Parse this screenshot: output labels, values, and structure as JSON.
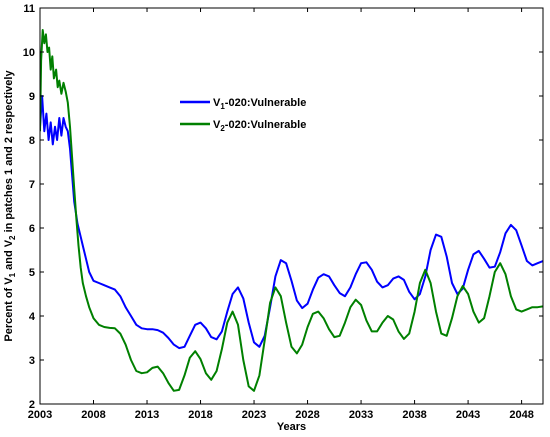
{
  "chart_data": {
    "type": "line",
    "title": "",
    "xlabel": "Years",
    "ylabel_parts": {
      "a": "Percent of V",
      "a_sub": "1",
      "b": " and V",
      "b_sub": "2",
      "c": " in patches 1 and 2 respectively"
    },
    "xlim": [
      2003,
      2050
    ],
    "ylim": [
      2,
      11
    ],
    "x_ticks": [
      2003,
      2008,
      2013,
      2018,
      2023,
      2028,
      2033,
      2038,
      2043,
      2048
    ],
    "x_tick_labels": [
      "2003",
      "2008",
      "2013",
      "2018",
      "2023",
      "2028",
      "2033",
      "2038",
      "2043",
      "2048"
    ],
    "y_ticks": [
      2,
      3,
      4,
      5,
      6,
      7,
      8,
      9,
      10,
      11
    ],
    "y_tick_labels": [
      "2",
      "3",
      "4",
      "5",
      "6",
      "7",
      "8",
      "9",
      "10",
      "11"
    ],
    "legend_position": "upper-center",
    "series": [
      {
        "name_main": "V",
        "name_sub": "1",
        "name_rest": "-020:Vulnerable",
        "color": "#0000ff",
        "points": [
          [
            2003.0,
            8.3
          ],
          [
            2003.2,
            9.0
          ],
          [
            2003.4,
            8.2
          ],
          [
            2003.6,
            8.6
          ],
          [
            2003.8,
            8.0
          ],
          [
            2004.0,
            8.4
          ],
          [
            2004.2,
            7.9
          ],
          [
            2004.4,
            8.3
          ],
          [
            2004.6,
            8.0
          ],
          [
            2004.8,
            8.5
          ],
          [
            2005.0,
            8.1
          ],
          [
            2005.2,
            8.5
          ],
          [
            2005.4,
            8.3
          ],
          [
            2005.6,
            8.2
          ],
          [
            2005.8,
            7.8
          ],
          [
            2006.0,
            7.2
          ],
          [
            2006.2,
            6.6
          ],
          [
            2006.5,
            6.1
          ],
          [
            2006.8,
            5.8
          ],
          [
            2007.0,
            5.6
          ],
          [
            2007.3,
            5.3
          ],
          [
            2007.6,
            5.0
          ],
          [
            2008.0,
            4.8
          ],
          [
            2008.5,
            4.75
          ],
          [
            2009.0,
            4.7
          ],
          [
            2009.5,
            4.65
          ],
          [
            2010.0,
            4.6
          ],
          [
            2010.5,
            4.45
          ],
          [
            2011.0,
            4.2
          ],
          [
            2011.5,
            4.0
          ],
          [
            2012.0,
            3.8
          ],
          [
            2012.5,
            3.72
          ],
          [
            2013.0,
            3.7
          ],
          [
            2013.5,
            3.7
          ],
          [
            2014.0,
            3.68
          ],
          [
            2014.5,
            3.62
          ],
          [
            2015.0,
            3.5
          ],
          [
            2015.5,
            3.35
          ],
          [
            2016.0,
            3.27
          ],
          [
            2016.5,
            3.3
          ],
          [
            2017.0,
            3.55
          ],
          [
            2017.5,
            3.8
          ],
          [
            2018.0,
            3.85
          ],
          [
            2018.5,
            3.72
          ],
          [
            2019.0,
            3.52
          ],
          [
            2019.5,
            3.47
          ],
          [
            2020.0,
            3.65
          ],
          [
            2020.5,
            4.1
          ],
          [
            2021.0,
            4.5
          ],
          [
            2021.5,
            4.65
          ],
          [
            2022.0,
            4.4
          ],
          [
            2022.5,
            3.85
          ],
          [
            2023.0,
            3.4
          ],
          [
            2023.5,
            3.3
          ],
          [
            2024.0,
            3.55
          ],
          [
            2024.5,
            4.2
          ],
          [
            2025.0,
            4.9
          ],
          [
            2025.5,
            5.27
          ],
          [
            2026.0,
            5.2
          ],
          [
            2026.5,
            4.8
          ],
          [
            2027.0,
            4.35
          ],
          [
            2027.5,
            4.18
          ],
          [
            2028.0,
            4.28
          ],
          [
            2028.5,
            4.6
          ],
          [
            2029.0,
            4.87
          ],
          [
            2029.5,
            4.95
          ],
          [
            2030.0,
            4.9
          ],
          [
            2030.5,
            4.7
          ],
          [
            2031.0,
            4.52
          ],
          [
            2031.5,
            4.45
          ],
          [
            2032.0,
            4.65
          ],
          [
            2032.5,
            4.95
          ],
          [
            2033.0,
            5.2
          ],
          [
            2033.5,
            5.22
          ],
          [
            2034.0,
            5.05
          ],
          [
            2034.5,
            4.78
          ],
          [
            2035.0,
            4.65
          ],
          [
            2035.5,
            4.7
          ],
          [
            2036.0,
            4.85
          ],
          [
            2036.5,
            4.9
          ],
          [
            2037.0,
            4.82
          ],
          [
            2037.5,
            4.55
          ],
          [
            2038.0,
            4.38
          ],
          [
            2038.5,
            4.5
          ],
          [
            2039.0,
            4.9
          ],
          [
            2039.5,
            5.5
          ],
          [
            2040.0,
            5.85
          ],
          [
            2040.5,
            5.8
          ],
          [
            2041.0,
            5.35
          ],
          [
            2041.5,
            4.75
          ],
          [
            2042.0,
            4.5
          ],
          [
            2042.5,
            4.62
          ],
          [
            2043.0,
            5.05
          ],
          [
            2043.5,
            5.4
          ],
          [
            2044.0,
            5.48
          ],
          [
            2044.5,
            5.3
          ],
          [
            2045.0,
            5.1
          ],
          [
            2045.5,
            5.12
          ],
          [
            2046.0,
            5.45
          ],
          [
            2046.5,
            5.88
          ],
          [
            2047.0,
            6.07
          ],
          [
            2047.5,
            5.95
          ],
          [
            2048.0,
            5.6
          ],
          [
            2048.5,
            5.25
          ],
          [
            2049.0,
            5.15
          ],
          [
            2049.5,
            5.2
          ],
          [
            2050.0,
            5.25
          ]
        ]
      },
      {
        "name_main": "V",
        "name_sub": "2",
        "name_rest": "-020:Vulnerable",
        "color": "#008000",
        "points": [
          [
            2003.0,
            8.2
          ],
          [
            2003.1,
            9.8
          ],
          [
            2003.25,
            10.5
          ],
          [
            2003.4,
            10.2
          ],
          [
            2003.55,
            10.4
          ],
          [
            2003.7,
            10.0
          ],
          [
            2003.85,
            10.1
          ],
          [
            2004.0,
            9.6
          ],
          [
            2004.15,
            9.9
          ],
          [
            2004.3,
            9.4
          ],
          [
            2004.5,
            9.6
          ],
          [
            2004.65,
            9.2
          ],
          [
            2004.8,
            9.35
          ],
          [
            2005.0,
            9.05
          ],
          [
            2005.2,
            9.3
          ],
          [
            2005.4,
            9.1
          ],
          [
            2005.6,
            8.85
          ],
          [
            2005.8,
            8.3
          ],
          [
            2006.0,
            7.6
          ],
          [
            2006.2,
            6.9
          ],
          [
            2006.4,
            6.2
          ],
          [
            2006.6,
            5.6
          ],
          [
            2006.8,
            5.1
          ],
          [
            2007.0,
            4.75
          ],
          [
            2007.3,
            4.45
          ],
          [
            2007.6,
            4.2
          ],
          [
            2008.0,
            3.95
          ],
          [
            2008.5,
            3.8
          ],
          [
            2009.0,
            3.75
          ],
          [
            2009.5,
            3.73
          ],
          [
            2010.0,
            3.72
          ],
          [
            2010.5,
            3.6
          ],
          [
            2011.0,
            3.35
          ],
          [
            2011.5,
            3.0
          ],
          [
            2012.0,
            2.75
          ],
          [
            2012.5,
            2.7
          ],
          [
            2013.0,
            2.72
          ],
          [
            2013.5,
            2.82
          ],
          [
            2014.0,
            2.85
          ],
          [
            2014.5,
            2.7
          ],
          [
            2015.0,
            2.48
          ],
          [
            2015.5,
            2.3
          ],
          [
            2016.0,
            2.32
          ],
          [
            2016.5,
            2.65
          ],
          [
            2017.0,
            3.05
          ],
          [
            2017.5,
            3.2
          ],
          [
            2018.0,
            3.02
          ],
          [
            2018.5,
            2.7
          ],
          [
            2019.0,
            2.55
          ],
          [
            2019.5,
            2.75
          ],
          [
            2020.0,
            3.25
          ],
          [
            2020.5,
            3.85
          ],
          [
            2021.0,
            4.1
          ],
          [
            2021.5,
            3.8
          ],
          [
            2022.0,
            3.0
          ],
          [
            2022.5,
            2.4
          ],
          [
            2023.0,
            2.3
          ],
          [
            2023.5,
            2.65
          ],
          [
            2024.0,
            3.45
          ],
          [
            2024.5,
            4.3
          ],
          [
            2025.0,
            4.65
          ],
          [
            2025.5,
            4.45
          ],
          [
            2026.0,
            3.85
          ],
          [
            2026.5,
            3.3
          ],
          [
            2027.0,
            3.15
          ],
          [
            2027.5,
            3.35
          ],
          [
            2028.0,
            3.75
          ],
          [
            2028.5,
            4.05
          ],
          [
            2029.0,
            4.1
          ],
          [
            2029.5,
            3.95
          ],
          [
            2030.0,
            3.7
          ],
          [
            2030.5,
            3.52
          ],
          [
            2031.0,
            3.55
          ],
          [
            2031.5,
            3.85
          ],
          [
            2032.0,
            4.2
          ],
          [
            2032.5,
            4.37
          ],
          [
            2033.0,
            4.25
          ],
          [
            2033.5,
            3.9
          ],
          [
            2034.0,
            3.65
          ],
          [
            2034.5,
            3.65
          ],
          [
            2035.0,
            3.85
          ],
          [
            2035.5,
            4.0
          ],
          [
            2036.0,
            3.92
          ],
          [
            2036.5,
            3.65
          ],
          [
            2037.0,
            3.48
          ],
          [
            2037.5,
            3.6
          ],
          [
            2038.0,
            4.1
          ],
          [
            2038.5,
            4.75
          ],
          [
            2039.0,
            5.05
          ],
          [
            2039.5,
            4.75
          ],
          [
            2040.0,
            4.1
          ],
          [
            2040.5,
            3.6
          ],
          [
            2041.0,
            3.55
          ],
          [
            2041.5,
            3.95
          ],
          [
            2042.0,
            4.45
          ],
          [
            2042.5,
            4.68
          ],
          [
            2043.0,
            4.5
          ],
          [
            2043.5,
            4.1
          ],
          [
            2044.0,
            3.85
          ],
          [
            2044.5,
            3.95
          ],
          [
            2045.0,
            4.45
          ],
          [
            2045.5,
            5.0
          ],
          [
            2046.0,
            5.2
          ],
          [
            2046.5,
            4.95
          ],
          [
            2047.0,
            4.45
          ],
          [
            2047.5,
            4.15
          ],
          [
            2048.0,
            4.1
          ],
          [
            2048.5,
            4.15
          ],
          [
            2049.0,
            4.2
          ],
          [
            2049.5,
            4.2
          ],
          [
            2050.0,
            4.22
          ]
        ]
      }
    ]
  }
}
